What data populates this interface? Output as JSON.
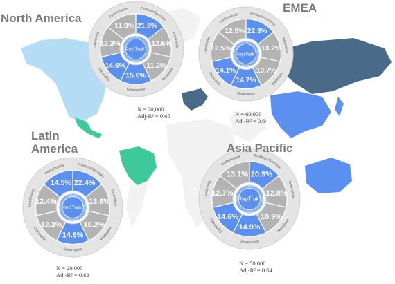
{
  "regions": [
    {
      "name": "North America",
      "n": "N = 20,000",
      "adj_r2": "Adj-R² = 0.65",
      "values": [
        "21.8%",
        "12.6%",
        "11.2%",
        "15.6%",
        "14.6%",
        "12.3%",
        "11.9%"
      ]
    },
    {
      "name": "EMEA",
      "n": "N = 60,000",
      "adj_r2": "Adj-R² = 0.64",
      "values": [
        "22.3%",
        "13.2%",
        "10.7%",
        "14.7%",
        "14.1%",
        "12.5%",
        "12.5%"
      ]
    },
    {
      "name_line1": "Latin",
      "name_line2": "America",
      "n": "N = 20,000",
      "adj_r2": "Adj-R² = 0.62",
      "values": [
        "22.4%",
        "13.6%",
        "10.2%",
        "14.6%",
        "12.3%",
        "12.4%",
        "14.5%"
      ]
    },
    {
      "name": "Asia Pacific",
      "n": "N = 50,000",
      "adj_r2": "Adj-R² = 0.64",
      "values": [
        "20.9%",
        "12.8%",
        "10.9%",
        "14.9%",
        "14.6%",
        "12.7%",
        "13.1%"
      ]
    }
  ],
  "wheel": {
    "dimension_labels": [
      "Products/Services",
      "Innovation",
      "Workplace",
      "Governance",
      "Citizenship",
      "Leadership",
      "Performance"
    ],
    "center_label": "RepTrak",
    "center_sup": "®",
    "center_top_label": "ESTEEM",
    "center_bottom_label": "TRUST",
    "center_left_label": "ADMIRE",
    "center_right_label": "FEELING"
  },
  "chart_data": [
    {
      "type": "pie",
      "title": "North America",
      "categories": [
        "Products/Services",
        "Innovation",
        "Workplace",
        "Governance",
        "Citizenship",
        "Leadership",
        "Performance"
      ],
      "values": [
        21.8,
        12.6,
        11.2,
        15.6,
        14.6,
        12.3,
        11.9
      ],
      "highlighted": [
        "Products/Services",
        "Governance",
        "Citizenship"
      ]
    },
    {
      "type": "pie",
      "title": "EMEA",
      "categories": [
        "Products/Services",
        "Innovation",
        "Workplace",
        "Governance",
        "Citizenship",
        "Leadership",
        "Performance"
      ],
      "values": [
        22.3,
        13.2,
        10.7,
        14.7,
        14.1,
        12.5,
        12.5
      ],
      "highlighted": [
        "Products/Services",
        "Governance",
        "Citizenship"
      ]
    },
    {
      "type": "pie",
      "title": "Latin America",
      "categories": [
        "Products/Services",
        "Innovation",
        "Workplace",
        "Governance",
        "Citizenship",
        "Leadership",
        "Performance"
      ],
      "values": [
        22.4,
        13.6,
        10.2,
        14.6,
        12.3,
        12.4,
        14.5
      ],
      "highlighted": [
        "Products/Services",
        "Governance",
        "Performance"
      ]
    },
    {
      "type": "pie",
      "title": "Asia Pacific",
      "categories": [
        "Products/Services",
        "Innovation",
        "Workplace",
        "Governance",
        "Citizenship",
        "Leadership",
        "Performance"
      ],
      "values": [
        20.9,
        12.8,
        10.9,
        14.9,
        14.6,
        12.7,
        13.1
      ],
      "highlighted": [
        "Products/Services",
        "Governance",
        "Citizenship"
      ]
    }
  ],
  "colors": {
    "highlight": "#5b8ff0",
    "neutral": "#b3b3b3",
    "ring": "#e4e4e4",
    "center": "#5b8ff0",
    "north_america": "#b4dcf5",
    "emea": "#4a6a8a",
    "latin_america": "#3ec99a",
    "asia_pacific": "#5b8ff0",
    "land": "#f2f2f2"
  }
}
